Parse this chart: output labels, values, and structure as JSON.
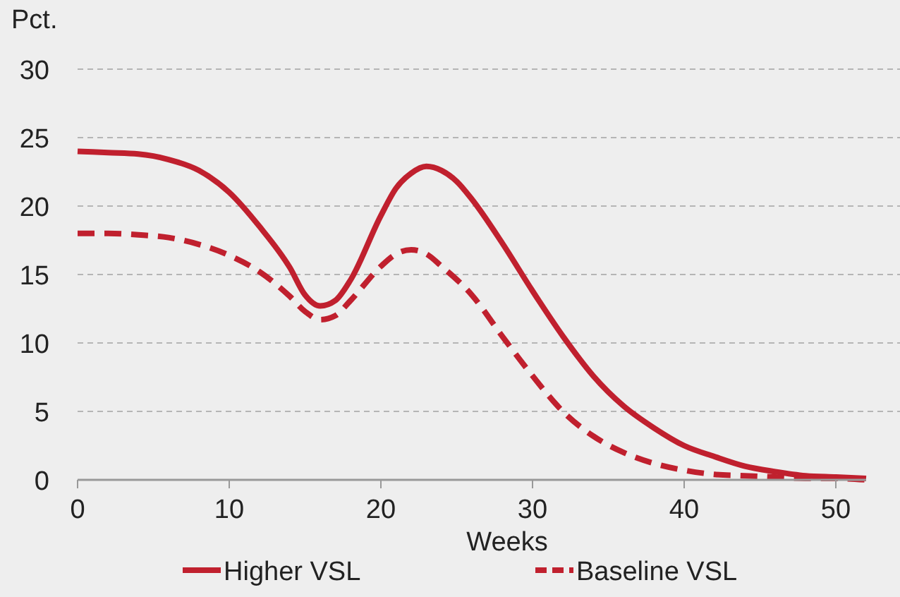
{
  "chart_data": {
    "type": "line",
    "ylabel": "Pct.",
    "xlabel": "Weeks",
    "xlim": [
      0,
      52
    ],
    "xticks": [
      0,
      10,
      20,
      30,
      40,
      50
    ],
    "ylim": [
      0,
      30
    ],
    "yticks": [
      0,
      5,
      10,
      15,
      20,
      25,
      30
    ],
    "grid": "y",
    "legend": "bottom",
    "marker": "none",
    "series": [
      {
        "name": "Higher VSL",
        "color": "#c0202e",
        "line_style": "solid",
        "x": [
          0,
          2,
          4,
          6,
          8,
          10,
          12,
          14,
          15,
          16,
          17,
          18,
          20,
          21,
          22,
          23,
          24,
          25,
          26,
          28,
          30,
          32,
          34,
          36,
          38,
          40,
          42,
          44,
          46,
          48,
          50,
          52
        ],
        "values": [
          24,
          23.9,
          23.8,
          23.4,
          22.6,
          21,
          18.5,
          15.5,
          13.5,
          12.7,
          13.1,
          14.6,
          19.3,
          21.3,
          22.4,
          22.9,
          22.6,
          21.8,
          20.5,
          17.3,
          13.8,
          10.5,
          7.6,
          5.4,
          3.8,
          2.5,
          1.7,
          1,
          0.6,
          0.3,
          0.2,
          0.1
        ]
      },
      {
        "name": "Baseline VSL",
        "color": "#c0202e",
        "line_style": "dashed",
        "x": [
          0,
          2,
          4,
          6,
          8,
          10,
          12,
          14,
          15,
          16,
          17,
          18,
          20,
          21,
          22,
          23,
          24,
          26,
          28,
          30,
          32,
          34,
          36,
          38,
          40,
          42,
          44,
          46,
          48,
          50,
          52
        ],
        "values": [
          18,
          18,
          17.9,
          17.7,
          17.2,
          16.4,
          15.2,
          13.4,
          12.3,
          11.7,
          12,
          13.1,
          15.6,
          16.5,
          16.8,
          16.5,
          15.6,
          13.5,
          10.5,
          7.6,
          5,
          3.2,
          2,
          1.2,
          0.7,
          0.4,
          0.3,
          0.2,
          0.1,
          0.1,
          0
        ]
      }
    ]
  }
}
